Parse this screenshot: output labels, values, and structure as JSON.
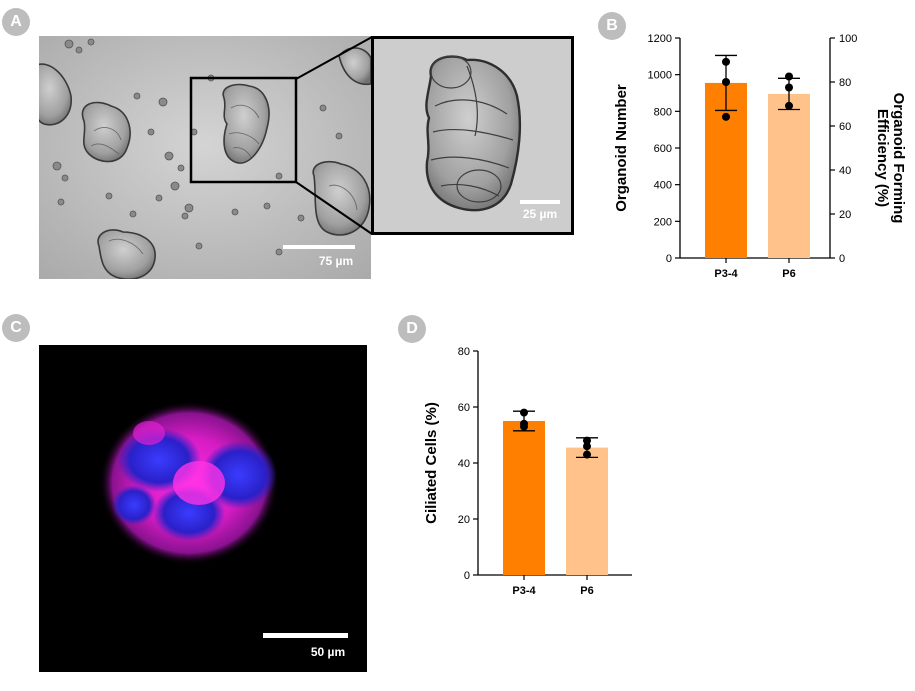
{
  "panels": {
    "a": {
      "label": "A",
      "scale_bar": "75 µm",
      "zoom_scale_bar": "25 µm"
    },
    "b": {
      "label": "B"
    },
    "c": {
      "label": "C",
      "scale_bar": "50 µm"
    },
    "d": {
      "label": "D"
    }
  },
  "colors": {
    "p34": "#ff8000",
    "p6": "#ffc28a",
    "point": "#000000",
    "label_circle": "#bdbdbd"
  },
  "chart_data": [
    {
      "type": "bar",
      "panel": "B",
      "categories": [
        "P3-4",
        "P6"
      ],
      "values": [
        955,
        895
      ],
      "error": [
        150,
        85
      ],
      "points": [
        [
          1070,
          960,
          770
        ],
        [
          990,
          930,
          830
        ]
      ],
      "ylabel": "Organoid Number",
      "ylim": [
        0,
        1200
      ],
      "yticks": [
        "0",
        "200",
        "400",
        "600",
        "800",
        "1000",
        "1200"
      ],
      "y2label_line1": "Organoid Forming",
      "y2label_line2": "Efficiency (%)",
      "y2lim": [
        0,
        100
      ],
      "y2ticks": [
        "0",
        "20",
        "40",
        "60",
        "80",
        "100"
      ]
    },
    {
      "type": "bar",
      "panel": "D",
      "categories": [
        "P3-4",
        "P6"
      ],
      "values": [
        55,
        45.5
      ],
      "error": [
        3.5,
        3.5
      ],
      "points": [
        [
          58,
          54,
          53
        ],
        [
          48,
          46,
          43
        ]
      ],
      "ylabel": "Ciliated Cells (%)",
      "ylim": [
        0,
        80
      ],
      "yticks": [
        "0",
        "20",
        "40",
        "60",
        "80"
      ]
    }
  ]
}
